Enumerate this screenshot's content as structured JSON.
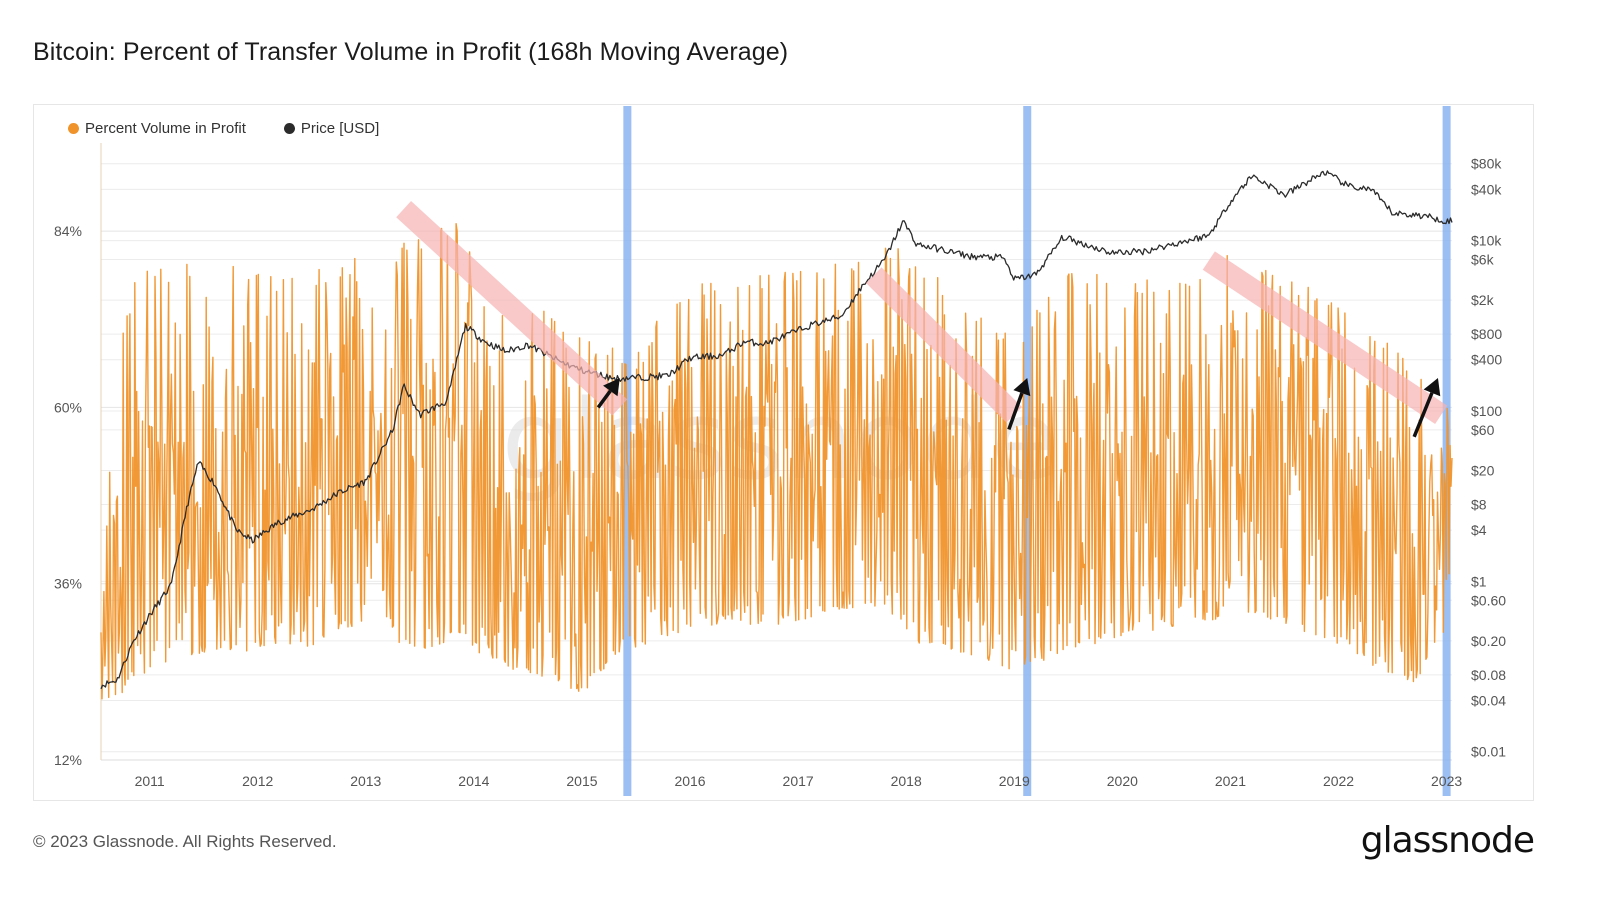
{
  "title": "Bitcoin: Percent of Transfer Volume in Profit (168h Moving Average)",
  "footer": {
    "copyright": "© 2023 Glassnode. All Rights Reserved.",
    "logo": "glassnode"
  },
  "watermark": "glassnode",
  "colors": {
    "percent": "#f0932b",
    "price": "#2b2b2b",
    "highlight": "#8ab4f0",
    "trend": "#f7b3b3",
    "arrow": "#111111",
    "grid": "#ececec"
  },
  "chart_data": {
    "type": "line",
    "title": "Bitcoin: Percent of Transfer Volume in Profit (168h Moving Average)",
    "legend": [
      {
        "name": "Percent Volume in Profit",
        "color": "#f0932b"
      },
      {
        "name": "Price [USD]",
        "color": "#2b2b2b"
      }
    ],
    "legend_position": "top-left",
    "x_range": [
      2010.55,
      2023.05
    ],
    "x_ticks": [
      "2011",
      "2012",
      "2013",
      "2014",
      "2015",
      "2016",
      "2017",
      "2018",
      "2019",
      "2020",
      "2021",
      "2022",
      "2023"
    ],
    "y_left": {
      "label": "Percent Volume in Profit",
      "range": [
        12,
        96
      ],
      "ticks": [
        "12%",
        "36%",
        "60%",
        "84%"
      ],
      "tick_values": [
        12,
        36,
        60,
        84
      ]
    },
    "y_right": {
      "label": "Price [USD]",
      "scale": "log",
      "range": [
        0.008,
        140000
      ],
      "ticks": [
        "$0.01",
        "$0.04",
        "$0.08",
        "$0.20",
        "$0.60",
        "$1",
        "$4",
        "$8",
        "$20",
        "$60",
        "$100",
        "$400",
        "$800",
        "$2k",
        "$6k",
        "$10k",
        "$40k",
        "$80k"
      ],
      "tick_values": [
        0.01,
        0.04,
        0.08,
        0.2,
        0.6,
        1,
        4,
        8,
        20,
        60,
        100,
        400,
        800,
        2000,
        6000,
        10000,
        40000,
        80000
      ]
    },
    "grid": true,
    "series": [
      {
        "name": "Percent Volume in Profit",
        "kind": "oscillating",
        "x": [
          2010.55,
          2010.8,
          2011.0,
          2011.3,
          2011.6,
          2011.9,
          2012.2,
          2012.5,
          2012.8,
          2013.1,
          2013.3,
          2013.6,
          2013.85,
          2014.1,
          2014.4,
          2014.7,
          2015.0,
          2015.3,
          2015.5,
          2015.8,
          2016.1,
          2016.4,
          2016.7,
          2017.0,
          2017.3,
          2017.6,
          2017.9,
          2018.1,
          2018.4,
          2018.7,
          2019.0,
          2019.2,
          2019.5,
          2019.8,
          2020.1,
          2020.4,
          2020.7,
          2020.95,
          2021.2,
          2021.5,
          2021.8,
          2022.1,
          2022.4,
          2022.7,
          2022.95
        ],
        "peak": [
          40,
          77,
          79,
          80,
          79,
          80,
          78,
          79,
          80,
          81,
          82,
          84,
          86,
          79,
          75,
          73,
          70,
          68,
          67,
          75,
          77,
          78,
          78,
          79,
          80,
          81,
          82,
          80,
          77,
          73,
          70,
          74,
          79,
          78,
          77,
          78,
          79,
          81,
          80,
          78,
          76,
          73,
          70,
          66,
          64
        ],
        "trough": [
          18,
          22,
          24,
          26,
          27,
          26,
          28,
          27,
          30,
          30,
          28,
          27,
          29,
          26,
          24,
          23,
          21,
          26,
          27,
          29,
          30,
          31,
          30,
          31,
          32,
          33,
          31,
          28,
          27,
          26,
          24,
          25,
          27,
          28,
          29,
          30,
          31,
          31,
          32,
          30,
          29,
          27,
          24,
          22,
          29
        ]
      },
      {
        "name": "Price [USD]",
        "x": [
          2010.55,
          2010.7,
          2010.85,
          2011.0,
          2011.2,
          2011.35,
          2011.45,
          2011.6,
          2011.8,
          2011.95,
          2012.2,
          2012.5,
          2012.75,
          2013.0,
          2013.25,
          2013.35,
          2013.5,
          2013.75,
          2013.92,
          2014.1,
          2014.3,
          2014.5,
          2014.8,
          2015.0,
          2015.3,
          2015.6,
          2015.8,
          2016.0,
          2016.3,
          2016.5,
          2016.7,
          2016.9,
          2017.1,
          2017.4,
          2017.6,
          2017.8,
          2017.97,
          2018.1,
          2018.3,
          2018.6,
          2018.9,
          2019.0,
          2019.2,
          2019.45,
          2019.6,
          2019.9,
          2020.2,
          2020.5,
          2020.8,
          2021.0,
          2021.2,
          2021.35,
          2021.5,
          2021.7,
          2021.87,
          2022.1,
          2022.3,
          2022.5,
          2022.8,
          2023.0
        ],
        "y": [
          0.06,
          0.07,
          0.2,
          0.4,
          0.9,
          8,
          25,
          14,
          4,
          3,
          5,
          7,
          11,
          15,
          60,
          200,
          90,
          130,
          1000,
          650,
          500,
          600,
          380,
          300,
          240,
          250,
          260,
          420,
          450,
          650,
          620,
          780,
          1000,
          1300,
          3000,
          6000,
          17000,
          9000,
          8000,
          6500,
          6300,
          3500,
          4000,
          11000,
          9500,
          7200,
          7500,
          9300,
          11500,
          29000,
          58000,
          45000,
          34000,
          48000,
          64000,
          43000,
          40000,
          21000,
          19500,
          17000
        ]
      }
    ],
    "annotations": {
      "highlight_bands_x": [
        2015.42,
        2019.12,
        2023.0
      ],
      "trend_lines": [
        {
          "from": [
            2013.35,
            87
          ],
          "to": [
            2015.35,
            60
          ]
        },
        {
          "from": [
            2017.7,
            78
          ],
          "to": [
            2019.0,
            59
          ]
        },
        {
          "from": [
            2020.8,
            80
          ],
          "to": [
            2022.95,
            59
          ]
        }
      ],
      "arrows": [
        {
          "from": [
            2015.15,
            60
          ],
          "to": [
            2015.35,
            64
          ]
        },
        {
          "from": [
            2018.95,
            57
          ],
          "to": [
            2019.12,
            64
          ]
        },
        {
          "from": [
            2022.7,
            56
          ],
          "to": [
            2022.92,
            64
          ]
        }
      ]
    }
  }
}
